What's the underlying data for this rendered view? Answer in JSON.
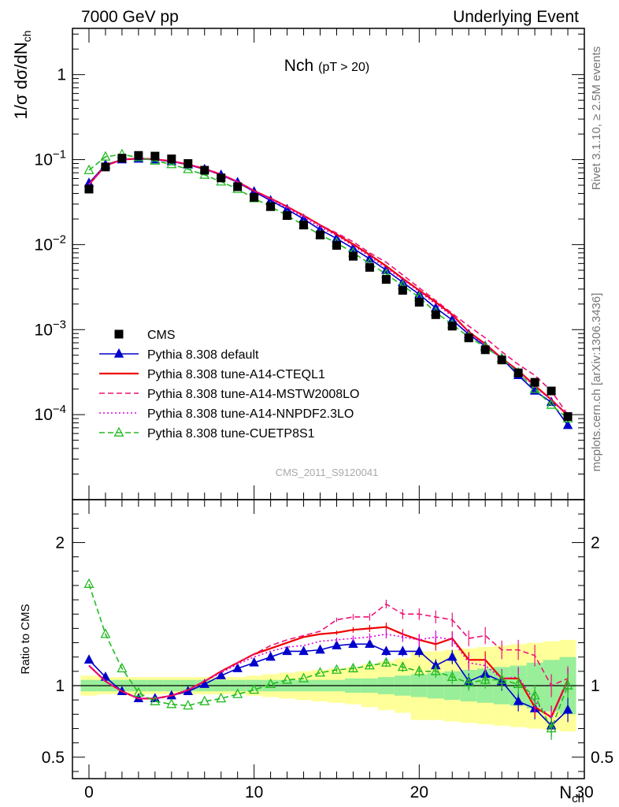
{
  "header": {
    "left": "7000 GeV pp",
    "right": "Underlying Event"
  },
  "side_labels": {
    "rivet": "Rivet 3.1.10, ≥ 2.5M events",
    "mcplots": "mcplots.cern.ch [arXiv:1306.3436]"
  },
  "chart_data": [
    {
      "type": "scatter",
      "panel": "main",
      "title_main": "Nch",
      "title_sub": "(pT > 20)",
      "watermark": "CMS_2011_S9120041",
      "ylabel": "1/σ dσ/dN",
      "ylabel_sub": "ch",
      "ylog": true,
      "xlim": [
        -1,
        30
      ],
      "ylim": [
        1e-05,
        3.5
      ],
      "legend_position": "bottom-left",
      "yticks": [
        {
          "v": 1,
          "m": "1",
          "e": ""
        },
        {
          "v": 0.1,
          "m": "10",
          "e": "−1"
        },
        {
          "v": 0.01,
          "m": "10",
          "e": "−2"
        },
        {
          "v": 0.001,
          "m": "10",
          "e": "−3"
        },
        {
          "v": 0.0001,
          "m": "10",
          "e": "−4"
        }
      ],
      "x": [
        0,
        1,
        2,
        3,
        4,
        5,
        6,
        7,
        8,
        9,
        10,
        11,
        12,
        13,
        14,
        15,
        16,
        17,
        18,
        19,
        20,
        21,
        22,
        23,
        24,
        25,
        26,
        27,
        28,
        29
      ],
      "series": [
        {
          "name": "CMS",
          "color": "#000000",
          "style": "data",
          "values": [
            0.045,
            0.082,
            0.104,
            0.112,
            0.11,
            0.102,
            0.09,
            0.075,
            0.061,
            0.048,
            0.036,
            0.028,
            0.022,
            0.017,
            0.013,
            0.0098,
            0.0073,
            0.0054,
            0.0039,
            0.0029,
            0.0021,
            0.0015,
            0.0011,
            0.0008,
            0.00058,
            0.00044,
            0.00031,
            0.00024,
            0.00019,
            9.5e-05
          ]
        },
        {
          "name": "Pythia 8.308 default",
          "color": "#0000cc",
          "style": "solid",
          "marker": "tri-filled",
          "values": [
            0.053,
            0.087,
            0.1,
            0.102,
            0.1,
            0.095,
            0.087,
            0.077,
            0.066,
            0.054,
            0.042,
            0.033,
            0.026,
            0.02,
            0.015,
            0.0118,
            0.009,
            0.0068,
            0.005,
            0.0036,
            0.0026,
            0.0018,
            0.0013,
            0.00088,
            0.00064,
            0.00046,
            0.00029,
            0.00019,
            0.00014,
            7.5e-05
          ]
        },
        {
          "name": "Pythia 8.308 tune-A14-CTEQL1",
          "color": "#ee0000",
          "style": "solid",
          "values": [
            0.051,
            0.085,
            0.1,
            0.103,
            0.101,
            0.096,
            0.088,
            0.078,
            0.067,
            0.055,
            0.043,
            0.035,
            0.028,
            0.022,
            0.017,
            0.0132,
            0.0101,
            0.0076,
            0.0056,
            0.004,
            0.0029,
            0.0021,
            0.0015,
            0.00094,
            0.00068,
            0.00046,
            0.00033,
            0.00022,
            0.00015,
            9.8e-05
          ]
        },
        {
          "name": "Pythia 8.308 tune-A14-MSTW2008LO",
          "color": "#ee1177",
          "style": "dashed",
          "values": [
            0.051,
            0.085,
            0.1,
            0.103,
            0.101,
            0.096,
            0.088,
            0.078,
            0.067,
            0.055,
            0.043,
            0.035,
            0.028,
            0.022,
            0.017,
            0.0137,
            0.0108,
            0.008,
            0.0062,
            0.0044,
            0.0031,
            0.0022,
            0.00155,
            0.0011,
            0.0008,
            0.00055,
            0.00039,
            0.00029,
            0.00019,
            0.0001
          ]
        },
        {
          "name": "Pythia 8.308 tune-A14-NNPDF2.3LO",
          "color": "#dd00dd",
          "style": "dotted",
          "values": [
            0.051,
            0.085,
            0.1,
            0.103,
            0.101,
            0.096,
            0.088,
            0.078,
            0.067,
            0.055,
            0.043,
            0.034,
            0.027,
            0.021,
            0.016,
            0.0128,
            0.0097,
            0.0073,
            0.0053,
            0.0039,
            0.0028,
            0.002,
            0.00145,
            0.00093,
            0.00066,
            0.00046,
            0.00033,
            0.00021,
            0.00015,
            9.8e-05
          ]
        },
        {
          "name": "Pythia 8.308 tune-CUETP8S1",
          "color": "#22bb22",
          "style": "dashed",
          "marker": "tri-open",
          "values": [
            0.075,
            0.108,
            0.115,
            0.106,
            0.097,
            0.088,
            0.077,
            0.066,
            0.055,
            0.045,
            0.035,
            0.028,
            0.022,
            0.017,
            0.013,
            0.0105,
            0.008,
            0.006,
            0.0045,
            0.0033,
            0.0024,
            0.0016,
            0.00115,
            0.00082,
            0.00062,
            0.00046,
            0.00031,
            0.0002,
            0.00013,
            9e-05
          ]
        }
      ]
    },
    {
      "type": "scatter",
      "panel": "ratio",
      "ylabel": "Ratio to CMS",
      "xlabel": "N",
      "xlabel_sub": "ch",
      "xlim": [
        -1,
        30
      ],
      "ylim": [
        0.35,
        2.3
      ],
      "yticks": [
        {
          "v": 0.5,
          "label": "0.5"
        },
        {
          "v": 1,
          "label": "1"
        },
        {
          "v": 2,
          "label": "2"
        }
      ],
      "xticks": [
        0,
        10,
        20,
        30
      ],
      "xticklabels": [
        "0",
        "10",
        "20",
        "30"
      ],
      "bands": {
        "color_inner": "#99ee99",
        "color_outer": "#ffff99",
        "inner": [
          0.04,
          0.04,
          0.04,
          0.04,
          0.04,
          0.04,
          0.04,
          0.04,
          0.04,
          0.04,
          0.04,
          0.04,
          0.04,
          0.04,
          0.04,
          0.04,
          0.05,
          0.05,
          0.06,
          0.07,
          0.08,
          0.09,
          0.1,
          0.11,
          0.12,
          0.13,
          0.14,
          0.16,
          0.18,
          0.2
        ],
        "outer": [
          0.07,
          0.06,
          0.06,
          0.06,
          0.06,
          0.06,
          0.06,
          0.06,
          0.06,
          0.06,
          0.07,
          0.08,
          0.09,
          0.1,
          0.11,
          0.12,
          0.13,
          0.15,
          0.17,
          0.19,
          0.24,
          0.24,
          0.25,
          0.26,
          0.27,
          0.28,
          0.29,
          0.3,
          0.31,
          0.32
        ]
      },
      "x": [
        0,
        1,
        2,
        3,
        4,
        5,
        6,
        7,
        8,
        9,
        10,
        11,
        12,
        13,
        14,
        15,
        16,
        17,
        18,
        19,
        20,
        21,
        22,
        23,
        24,
        25,
        26,
        27,
        28,
        29
      ],
      "series": [
        {
          "name": "Pythia 8.308 default",
          "color": "#0000cc",
          "style": "solid",
          "marker": "tri-filled",
          "values": [
            1.18,
            1.06,
            0.96,
            0.91,
            0.91,
            0.93,
            0.96,
            1.01,
            1.07,
            1.12,
            1.16,
            1.2,
            1.24,
            1.24,
            1.25,
            1.28,
            1.29,
            1.29,
            1.24,
            1.24,
            1.24,
            1.14,
            1.2,
            1.03,
            1.08,
            1.03,
            0.89,
            0.84,
            0.72,
            0.83
          ]
        },
        {
          "name": "Pythia 8.308 tune-A14-CTEQL1",
          "color": "#ee0000",
          "style": "solid",
          "values": [
            1.14,
            1.03,
            0.96,
            0.91,
            0.91,
            0.93,
            0.97,
            1.03,
            1.1,
            1.16,
            1.22,
            1.26,
            1.3,
            1.34,
            1.36,
            1.37,
            1.39,
            1.4,
            1.41,
            1.36,
            1.32,
            1.29,
            1.33,
            1.18,
            1.18,
            1.05,
            1.05,
            0.85,
            0.78,
            1.04
          ]
        },
        {
          "name": "Pythia 8.308 tune-A14-MSTW2008LO",
          "color": "#ee1177",
          "style": "dashed",
          "values": [
            1.14,
            1.03,
            0.96,
            0.91,
            0.91,
            0.93,
            0.97,
            1.03,
            1.1,
            1.16,
            1.22,
            1.28,
            1.32,
            1.35,
            1.38,
            1.46,
            1.48,
            1.48,
            1.57,
            1.5,
            1.5,
            1.48,
            1.46,
            1.33,
            1.35,
            1.25,
            1.25,
            1.21,
            1.0,
            1.05
          ]
        },
        {
          "name": "Pythia 8.308 tune-A14-NNPDF2.3LO",
          "color": "#dd00dd",
          "style": "dotted",
          "values": [
            1.14,
            1.03,
            0.96,
            0.91,
            0.91,
            0.93,
            0.97,
            1.03,
            1.09,
            1.15,
            1.2,
            1.24,
            1.27,
            1.28,
            1.31,
            1.32,
            1.33,
            1.34,
            1.36,
            1.34,
            1.32,
            1.34,
            1.32,
            1.16,
            1.14,
            1.05,
            1.06,
            0.89,
            0.77,
            1.03
          ]
        },
        {
          "name": "Pythia 8.308 tune-CUETP8S1",
          "color": "#22bb22",
          "style": "dashed",
          "marker": "tri-open",
          "values": [
            1.71,
            1.36,
            1.12,
            0.95,
            0.89,
            0.87,
            0.86,
            0.89,
            0.91,
            0.94,
            0.97,
            1.01,
            1.04,
            1.05,
            1.09,
            1.11,
            1.12,
            1.14,
            1.16,
            1.13,
            1.1,
            1.1,
            1.06,
            1.02,
            1.04,
            1.04,
            1.01,
            0.93,
            0.7,
            1.0
          ]
        }
      ]
    }
  ]
}
